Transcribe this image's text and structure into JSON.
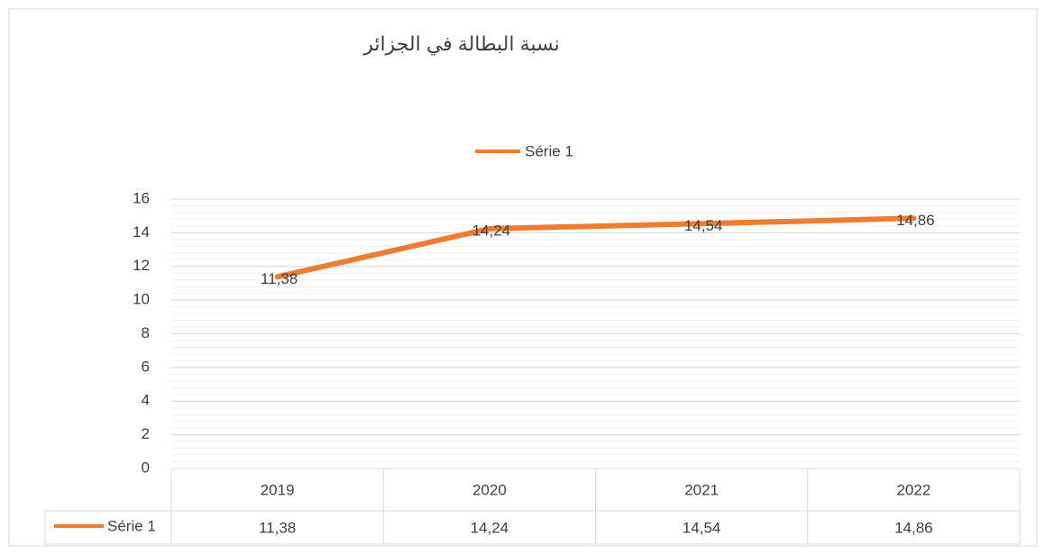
{
  "chart_data": {
    "type": "line",
    "title": "نسبة البطالة في الجزائر",
    "categories": [
      "2019",
      "2020",
      "2021",
      "2022"
    ],
    "series": [
      {
        "name": "Série 1",
        "color": "#ed7d31",
        "values": [
          11.38,
          14.24,
          14.54,
          14.86
        ],
        "value_labels": [
          "11,38",
          "14,24",
          "14,54",
          "14,86"
        ]
      }
    ],
    "ylim": [
      0,
      16
    ],
    "yticks": [
      0,
      2,
      4,
      6,
      8,
      10,
      12,
      14,
      16
    ],
    "grid": true,
    "legend": "top",
    "data_table": true
  }
}
